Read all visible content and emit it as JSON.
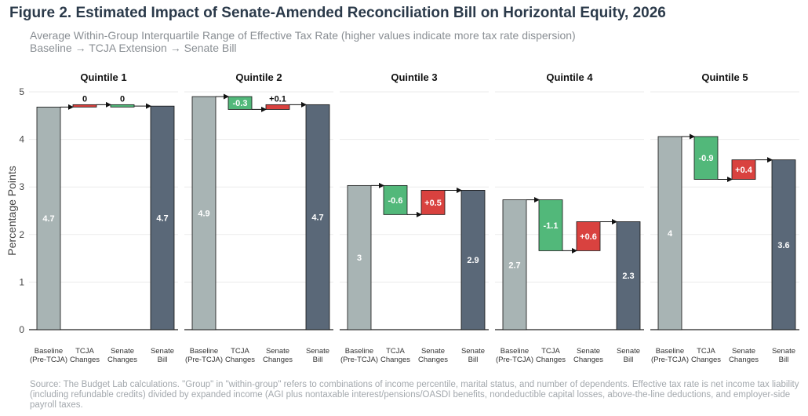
{
  "title": "Figure 2. Estimated Impact of Senate-Amended Reconciliation Bill on Horizontal Equity, 2026",
  "subtitle_line1": "Average Within-Group Interquartile Range of Effective Tax Rate (higher values indicate more tax rate dispersion)",
  "subtitle_line2": "Baseline → TCJA Extension → Senate Bill",
  "source": "Source: The Budget Lab calculations. \"Group\" in \"within-group\" refers to combinations of income percentile, marital status, and number of dependents. Effective tax rate is net income tax liability (including refundable credits) divided by expanded income (AGI plus nontaxable interest/pensions/OASDI benefits, nondeductible capital losses, above-the-line deductions, and employer-side payroll taxes.",
  "colors": {
    "baseline": "#a8b4b4",
    "senate_bill": "#5a6878",
    "increase": "#d9423f",
    "decrease": "#52b87a",
    "grid": "#ebebeb",
    "axis": "#222222"
  },
  "chart_data": {
    "type": "bar",
    "subtype": "waterfall",
    "ylabel": "Percentage Points",
    "ylim": [
      0,
      5
    ],
    "yticks": [
      "0",
      "1",
      "2",
      "3",
      "4",
      "5"
    ],
    "categories": [
      [
        "Baseline",
        "(Pre-TCJA)"
      ],
      [
        "TCJA",
        "Changes"
      ],
      [
        "Senate",
        "Changes"
      ],
      [
        "Senate",
        "Bill"
      ]
    ],
    "panels": [
      {
        "name": "Quintile 1",
        "steps": [
          {
            "kind": "total",
            "start": 0,
            "end": 4.68,
            "label": "4.7"
          },
          {
            "kind": "increase",
            "start": 4.68,
            "end": 4.73,
            "label": "0"
          },
          {
            "kind": "decrease",
            "start": 4.73,
            "end": 4.7,
            "label": "0"
          },
          {
            "kind": "final",
            "start": 0,
            "end": 4.7,
            "label": "4.7"
          }
        ]
      },
      {
        "name": "Quintile 2",
        "steps": [
          {
            "kind": "total",
            "start": 0,
            "end": 4.9,
            "label": "4.9"
          },
          {
            "kind": "decrease",
            "start": 4.9,
            "end": 4.63,
            "label": "-0.3"
          },
          {
            "kind": "increase",
            "start": 4.63,
            "end": 4.73,
            "label": "+0.1"
          },
          {
            "kind": "final",
            "start": 0,
            "end": 4.73,
            "label": "4.7"
          }
        ]
      },
      {
        "name": "Quintile 3",
        "steps": [
          {
            "kind": "total",
            "start": 0,
            "end": 3.03,
            "label": "3"
          },
          {
            "kind": "decrease",
            "start": 3.03,
            "end": 2.42,
            "label": "-0.6"
          },
          {
            "kind": "increase",
            "start": 2.42,
            "end": 2.93,
            "label": "+0.5"
          },
          {
            "kind": "final",
            "start": 0,
            "end": 2.93,
            "label": "2.9"
          }
        ]
      },
      {
        "name": "Quintile 4",
        "steps": [
          {
            "kind": "total",
            "start": 0,
            "end": 2.73,
            "label": "2.7"
          },
          {
            "kind": "decrease",
            "start": 2.73,
            "end": 1.66,
            "label": "-1.1"
          },
          {
            "kind": "increase",
            "start": 1.66,
            "end": 2.27,
            "label": "+0.6"
          },
          {
            "kind": "final",
            "start": 0,
            "end": 2.27,
            "label": "2.3"
          }
        ]
      },
      {
        "name": "Quintile 5",
        "steps": [
          {
            "kind": "total",
            "start": 0,
            "end": 4.06,
            "label": "4"
          },
          {
            "kind": "decrease",
            "start": 4.06,
            "end": 3.16,
            "label": "-0.9"
          },
          {
            "kind": "increase",
            "start": 3.16,
            "end": 3.57,
            "label": "+0.4"
          },
          {
            "kind": "final",
            "start": 0,
            "end": 3.57,
            "label": "3.6"
          }
        ]
      }
    ]
  }
}
